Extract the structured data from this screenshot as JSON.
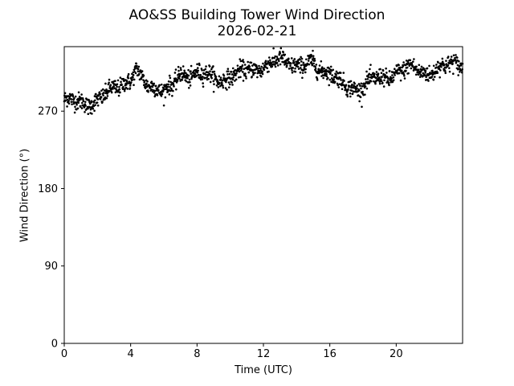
{
  "title_line1": "AO&SS Building Tower Wind Direction",
  "title_line2": "2026-02-21",
  "chart_data": {
    "type": "scatter",
    "xlabel": "Time (UTC)",
    "ylabel": "Wind Direction (°)",
    "xlim": [
      0,
      24
    ],
    "ylim": [
      0,
      345
    ],
    "xticks": [
      0,
      4,
      8,
      12,
      16,
      20
    ],
    "xtick_labels": [
      "0",
      "4",
      "8",
      "12",
      "16",
      "20"
    ],
    "yticks": [
      0,
      90,
      180,
      270
    ],
    "ytick_labels": [
      "0",
      "90",
      "180",
      "270"
    ],
    "grid": false,
    "marker_color": "#000000",
    "anchors": {
      "time_utc": [
        0.0,
        0.5,
        1.0,
        1.5,
        2.0,
        2.5,
        3.0,
        3.5,
        4.0,
        4.3,
        4.6,
        5.0,
        5.5,
        6.0,
        6.5,
        7.0,
        7.5,
        8.0,
        8.5,
        9.0,
        9.5,
        10.0,
        10.5,
        11.0,
        11.5,
        12.0,
        12.5,
        13.0,
        13.5,
        14.0,
        14.5,
        15.0,
        15.5,
        16.0,
        16.5,
        17.0,
        17.5,
        18.0,
        18.5,
        19.0,
        19.5,
        20.0,
        20.5,
        21.0,
        21.5,
        22.0,
        22.5,
        23.0,
        23.5,
        24.0
      ],
      "direction_deg": [
        283,
        281,
        280,
        280,
        282,
        288,
        297,
        303,
        306,
        316,
        309,
        300,
        299,
        295,
        297,
        312,
        312,
        315,
        312,
        308,
        307,
        311,
        313,
        318,
        320,
        322,
        324,
        330,
        328,
        323,
        322,
        325,
        318,
        317,
        305,
        298,
        296,
        300,
        306,
        307,
        310,
        315,
        318,
        320,
        317,
        315,
        318,
        322,
        328,
        325
      ]
    },
    "point_count": 1400,
    "spread_deg": 5
  }
}
